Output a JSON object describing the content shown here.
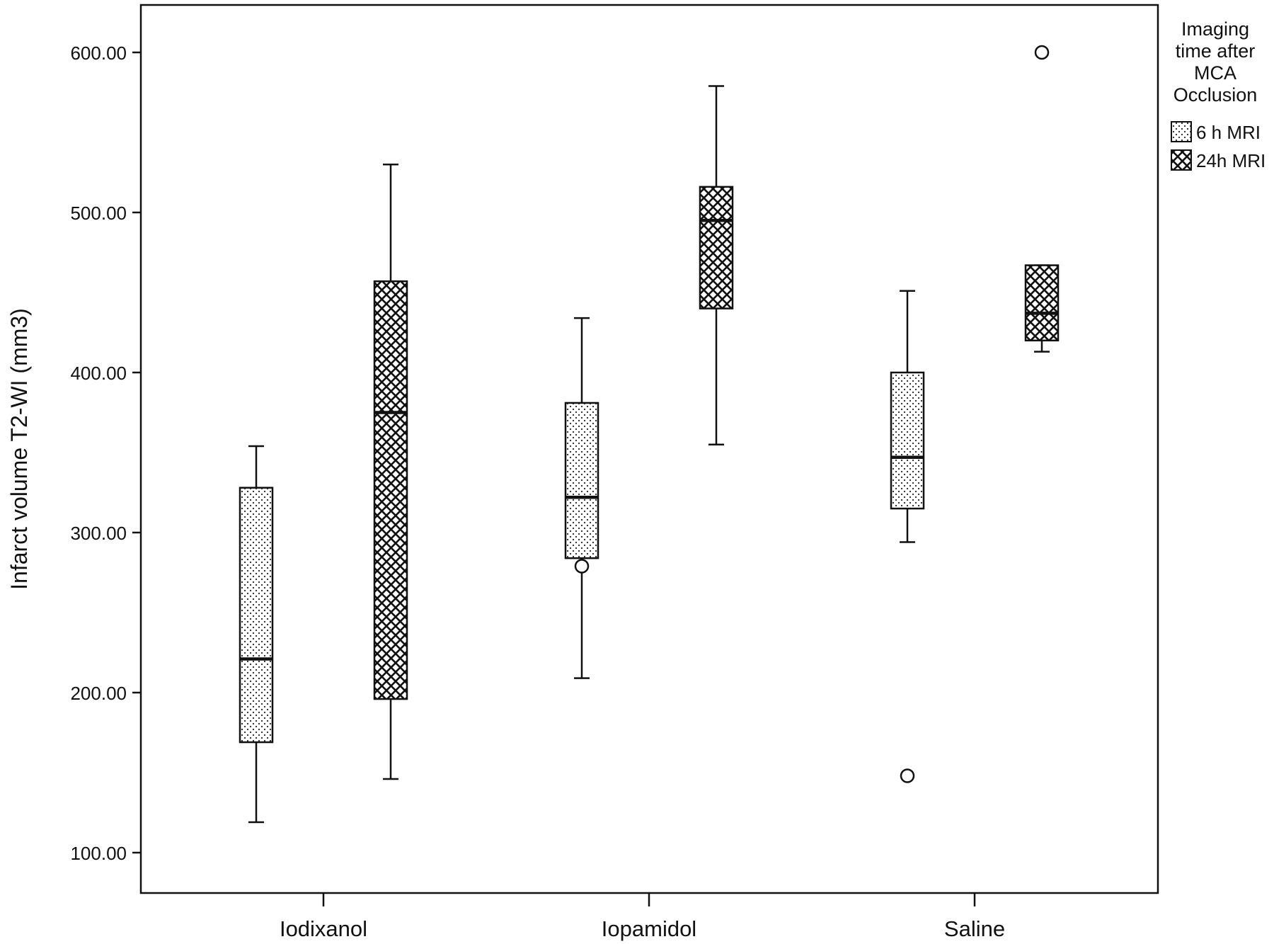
{
  "chart_data": {
    "type": "boxplot",
    "title": "",
    "ylabel": "Infarct volume T2-WI (mm3)",
    "xlabel": "",
    "ylim": [
      70,
      625
    ],
    "yticks": [
      100,
      200,
      300,
      400,
      500,
      600
    ],
    "ytick_labels": [
      "100.00",
      "200.00",
      "300.00",
      "400.00",
      "500.00",
      "600.00"
    ],
    "categories": [
      "Iodixanol",
      "Iopamidol",
      "Saline"
    ],
    "legend": {
      "title": "Imaging time after MCA Occlusion",
      "title_lines": [
        "Imaging",
        "time after",
        "MCA",
        "Occlusion"
      ],
      "position": "right",
      "entries": [
        {
          "label": "6 h MRI",
          "pattern": "dots"
        },
        {
          "label": "24h MRI",
          "pattern": "crosshatch"
        }
      ]
    },
    "series": [
      {
        "name": "6 h MRI",
        "pattern": "dots",
        "boxes": [
          {
            "category": "Iodixanol",
            "whisker_low": 119,
            "q1": 169,
            "median": 221,
            "q3": 328,
            "whisker_high": 354,
            "outliers": []
          },
          {
            "category": "Iopamidol",
            "whisker_low": 209,
            "q1": 284,
            "median": 322,
            "q3": 381,
            "whisker_high": 434,
            "outliers": [
              279
            ]
          },
          {
            "category": "Saline",
            "whisker_low": 294,
            "q1": 315,
            "median": 347,
            "q3": 400,
            "whisker_high": 451,
            "outliers": [
              148
            ]
          }
        ]
      },
      {
        "name": "24h MRI",
        "pattern": "crosshatch",
        "boxes": [
          {
            "category": "Iodixanol",
            "whisker_low": 146,
            "q1": 196,
            "median": 375,
            "q3": 457,
            "whisker_high": 530,
            "outliers": []
          },
          {
            "category": "Iopamidol",
            "whisker_low": 355,
            "q1": 440,
            "median": 495,
            "q3": 516,
            "whisker_high": 579,
            "outliers": []
          },
          {
            "category": "Saline",
            "whisker_low": 413,
            "q1": 420,
            "median": 437,
            "q3": 467,
            "whisker_high": 467,
            "outliers": [
              600
            ]
          }
        ]
      }
    ]
  }
}
